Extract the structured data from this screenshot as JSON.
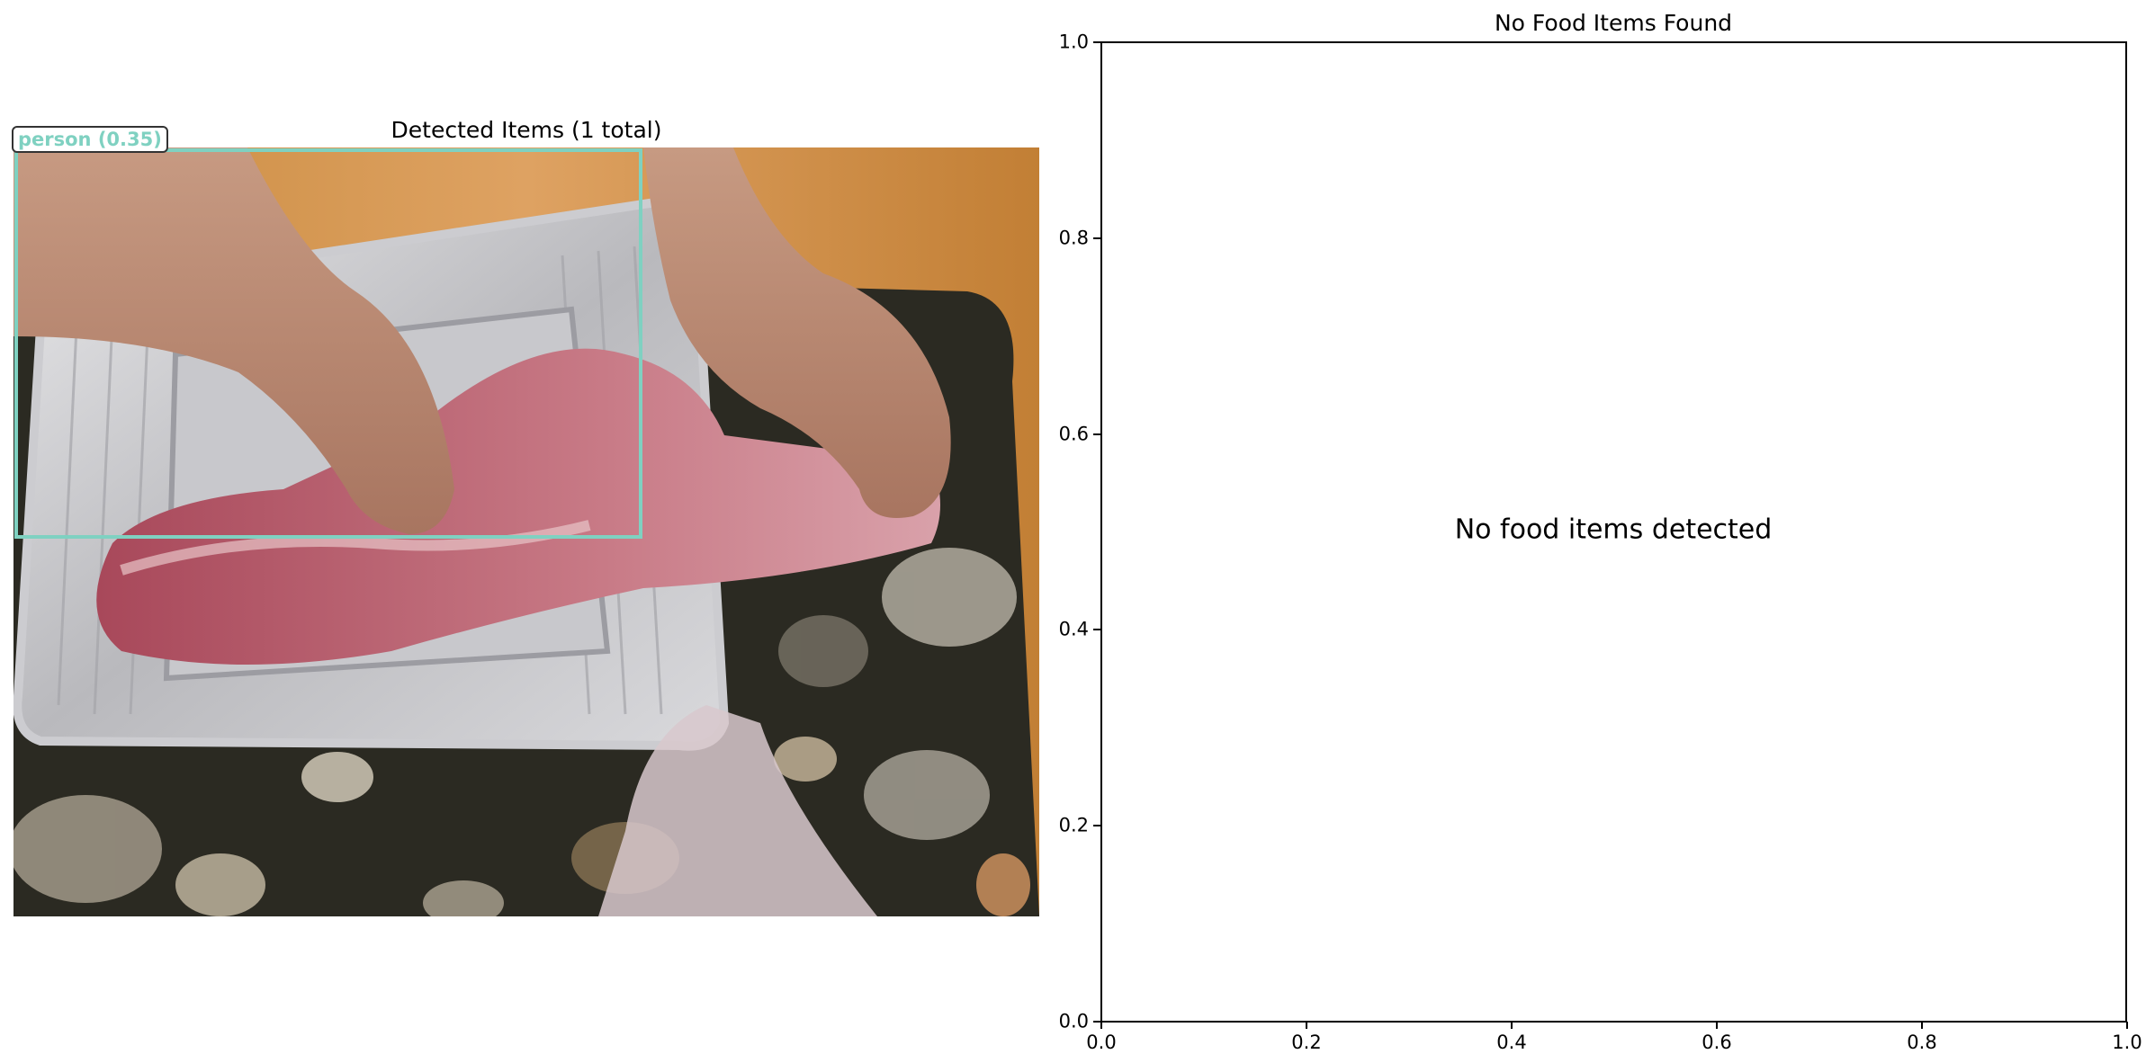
{
  "left_panel": {
    "title": "Detected Items (1 total)",
    "detections": [
      {
        "label": "person (0.35)",
        "color": "#7fd1c1"
      }
    ]
  },
  "right_panel": {
    "title": "No Food Items Found",
    "message": "No food items detected"
  },
  "chart_data": {
    "type": "scatter",
    "title": "No Food Items Found",
    "xlabel": "",
    "ylabel": "",
    "xlim": [
      0.0,
      1.0
    ],
    "ylim": [
      0.0,
      1.0
    ],
    "series": [],
    "annotation": "No food items detected",
    "xticks": [
      "0.0",
      "0.2",
      "0.4",
      "0.6",
      "0.8",
      "1.0"
    ],
    "yticks": [
      "0.0",
      "0.2",
      "0.4",
      "0.6",
      "0.8",
      "1.0"
    ],
    "grid": false
  },
  "colors": {
    "detection_box": "#7fd1c1",
    "axes": "#000000"
  }
}
